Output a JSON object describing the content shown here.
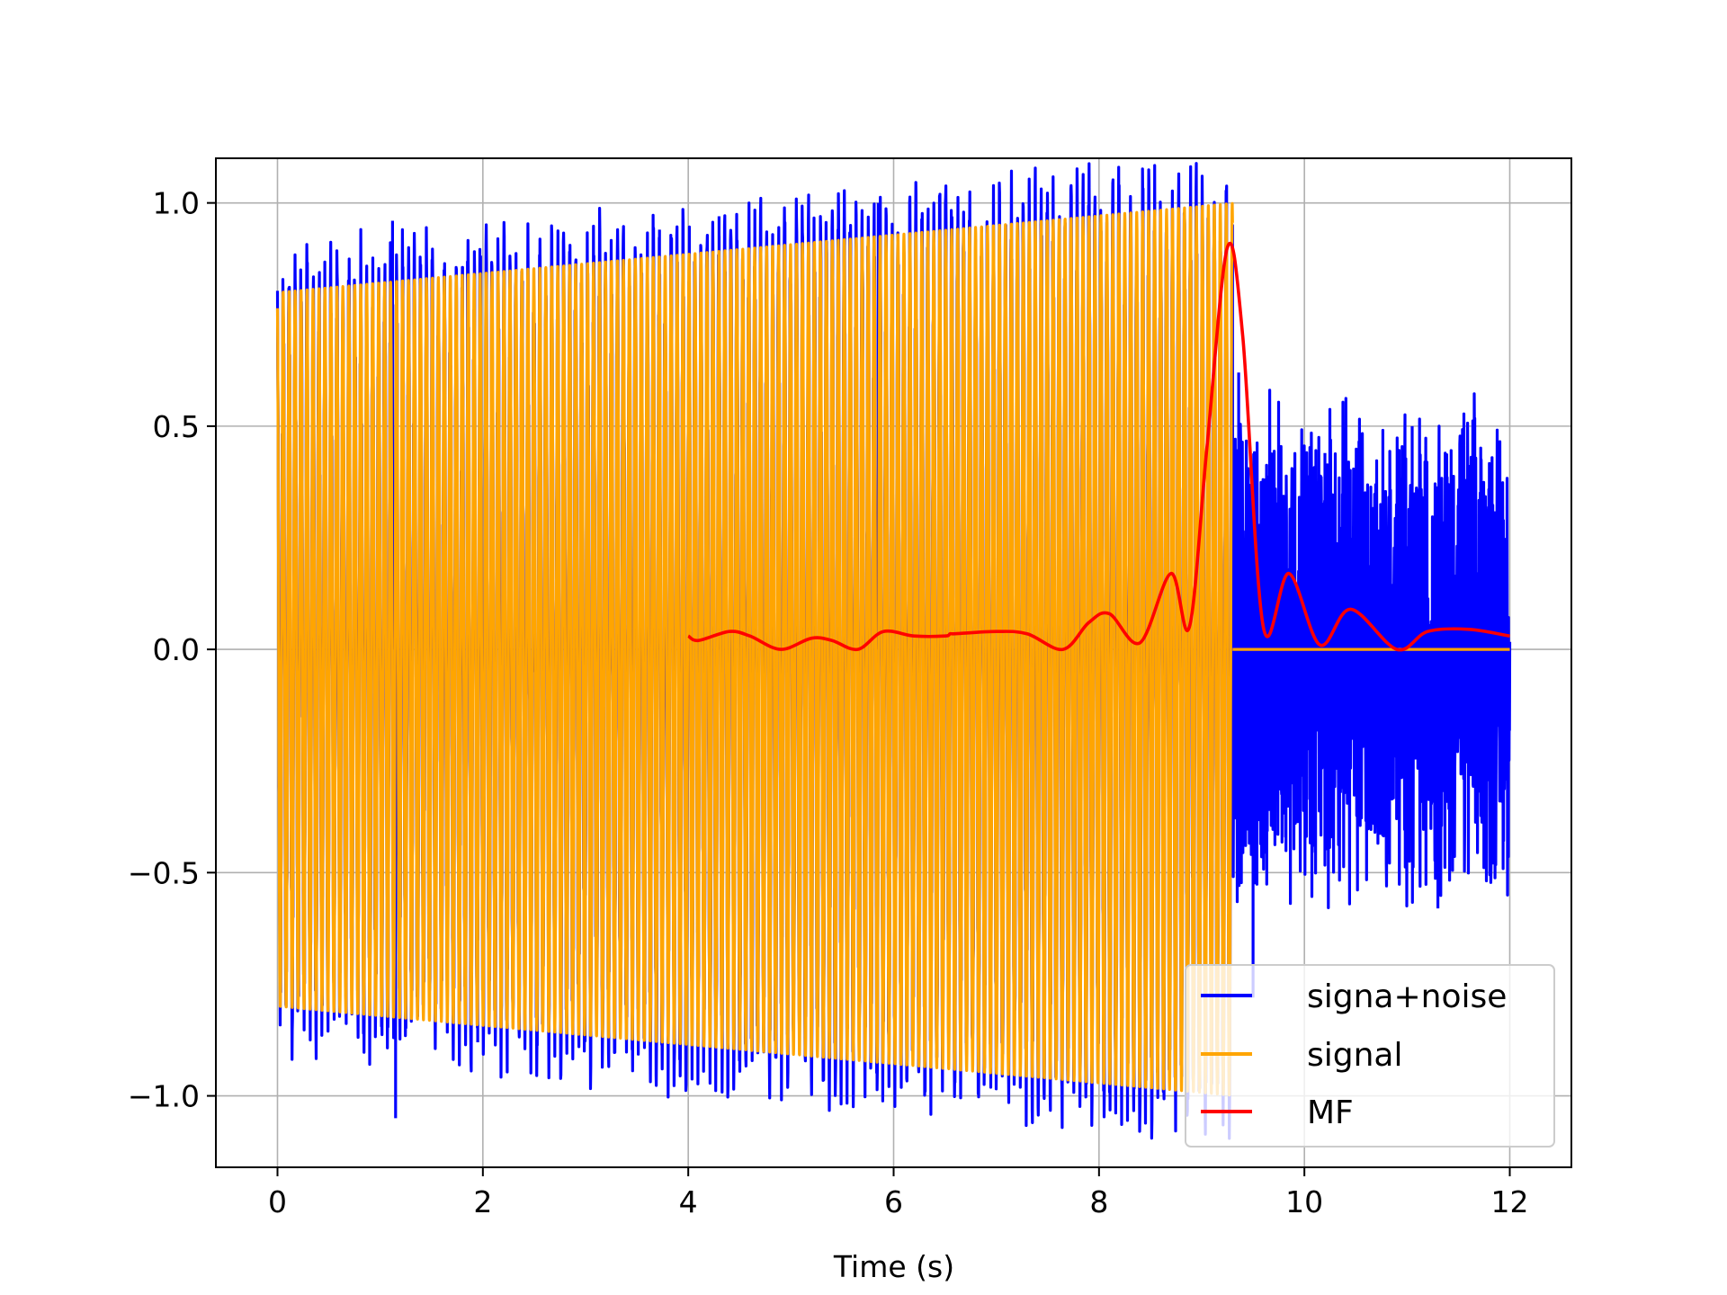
{
  "chart_data": {
    "type": "line",
    "title": "",
    "xlabel": "Time (s)",
    "ylabel": "",
    "xlim": [
      -0.6,
      12.6
    ],
    "ylim": [
      -1.16,
      1.1
    ],
    "grid": true,
    "legend_position": "lower-right",
    "x_ticks": [
      0,
      2,
      4,
      6,
      8,
      10,
      12
    ],
    "x_tick_labels": [
      "0",
      "2",
      "4",
      "6",
      "8",
      "10",
      "12"
    ],
    "y_ticks": [
      -1.0,
      -0.5,
      0.0,
      0.5,
      1.0
    ],
    "y_tick_labels": [
      "−1.0",
      "−0.5",
      "0.0",
      "0.5",
      "1.0"
    ],
    "series": [
      {
        "name": "signa+noise",
        "color": "#0000ff",
        "description_points": {
          "spikes": [
            {
              "x": 1.12,
              "y": 0.96
            },
            {
              "x": 1.15,
              "y": -1.05
            },
            {
              "x": 1.85,
              "y": 0.87
            },
            {
              "x": 1.95,
              "y": -0.88
            },
            {
              "x": 3.72,
              "y": 0.94
            },
            {
              "x": 4.3,
              "y": 0.97
            },
            {
              "x": 5.85,
              "y": 1.0
            },
            {
              "x": 9.36,
              "y": 0.62
            },
            {
              "x": 9.5,
              "y": -0.78
            },
            {
              "x": 10.2,
              "y": 0.44
            },
            {
              "x": 11.05,
              "y": 0.5
            },
            {
              "x": 11.3,
              "y": -0.58
            }
          ]
        }
      },
      {
        "name": "signal",
        "color": "#ffa500",
        "t_start": 0.0,
        "t_end": 9.3,
        "amplitude_start": 0.8,
        "amplitude_end": 1.0,
        "cycles": 160,
        "value_after_end": 0.0
      },
      {
        "name": "MF",
        "color": "#ff0000",
        "x": [
          4.0,
          4.1,
          4.4,
          4.6,
          4.9,
          5.2,
          5.4,
          5.65,
          5.9,
          6.2,
          6.5,
          6.55,
          6.6,
          7.0,
          7.3,
          7.65,
          7.9,
          8.1,
          8.4,
          8.7,
          8.88,
          9.05,
          9.25,
          9.4,
          9.6,
          9.85,
          10.15,
          10.45,
          10.9,
          11.2,
          11.6,
          12.0
        ],
        "y": [
          0.03,
          0.02,
          0.04,
          0.03,
          0.0,
          0.025,
          0.02,
          0.0,
          0.04,
          0.03,
          0.03,
          0.035,
          0.035,
          0.04,
          0.035,
          0.0,
          0.06,
          0.08,
          0.015,
          0.17,
          0.05,
          0.45,
          0.9,
          0.7,
          0.05,
          0.17,
          0.01,
          0.09,
          0.0,
          0.04,
          0.045,
          0.03
        ]
      }
    ]
  }
}
